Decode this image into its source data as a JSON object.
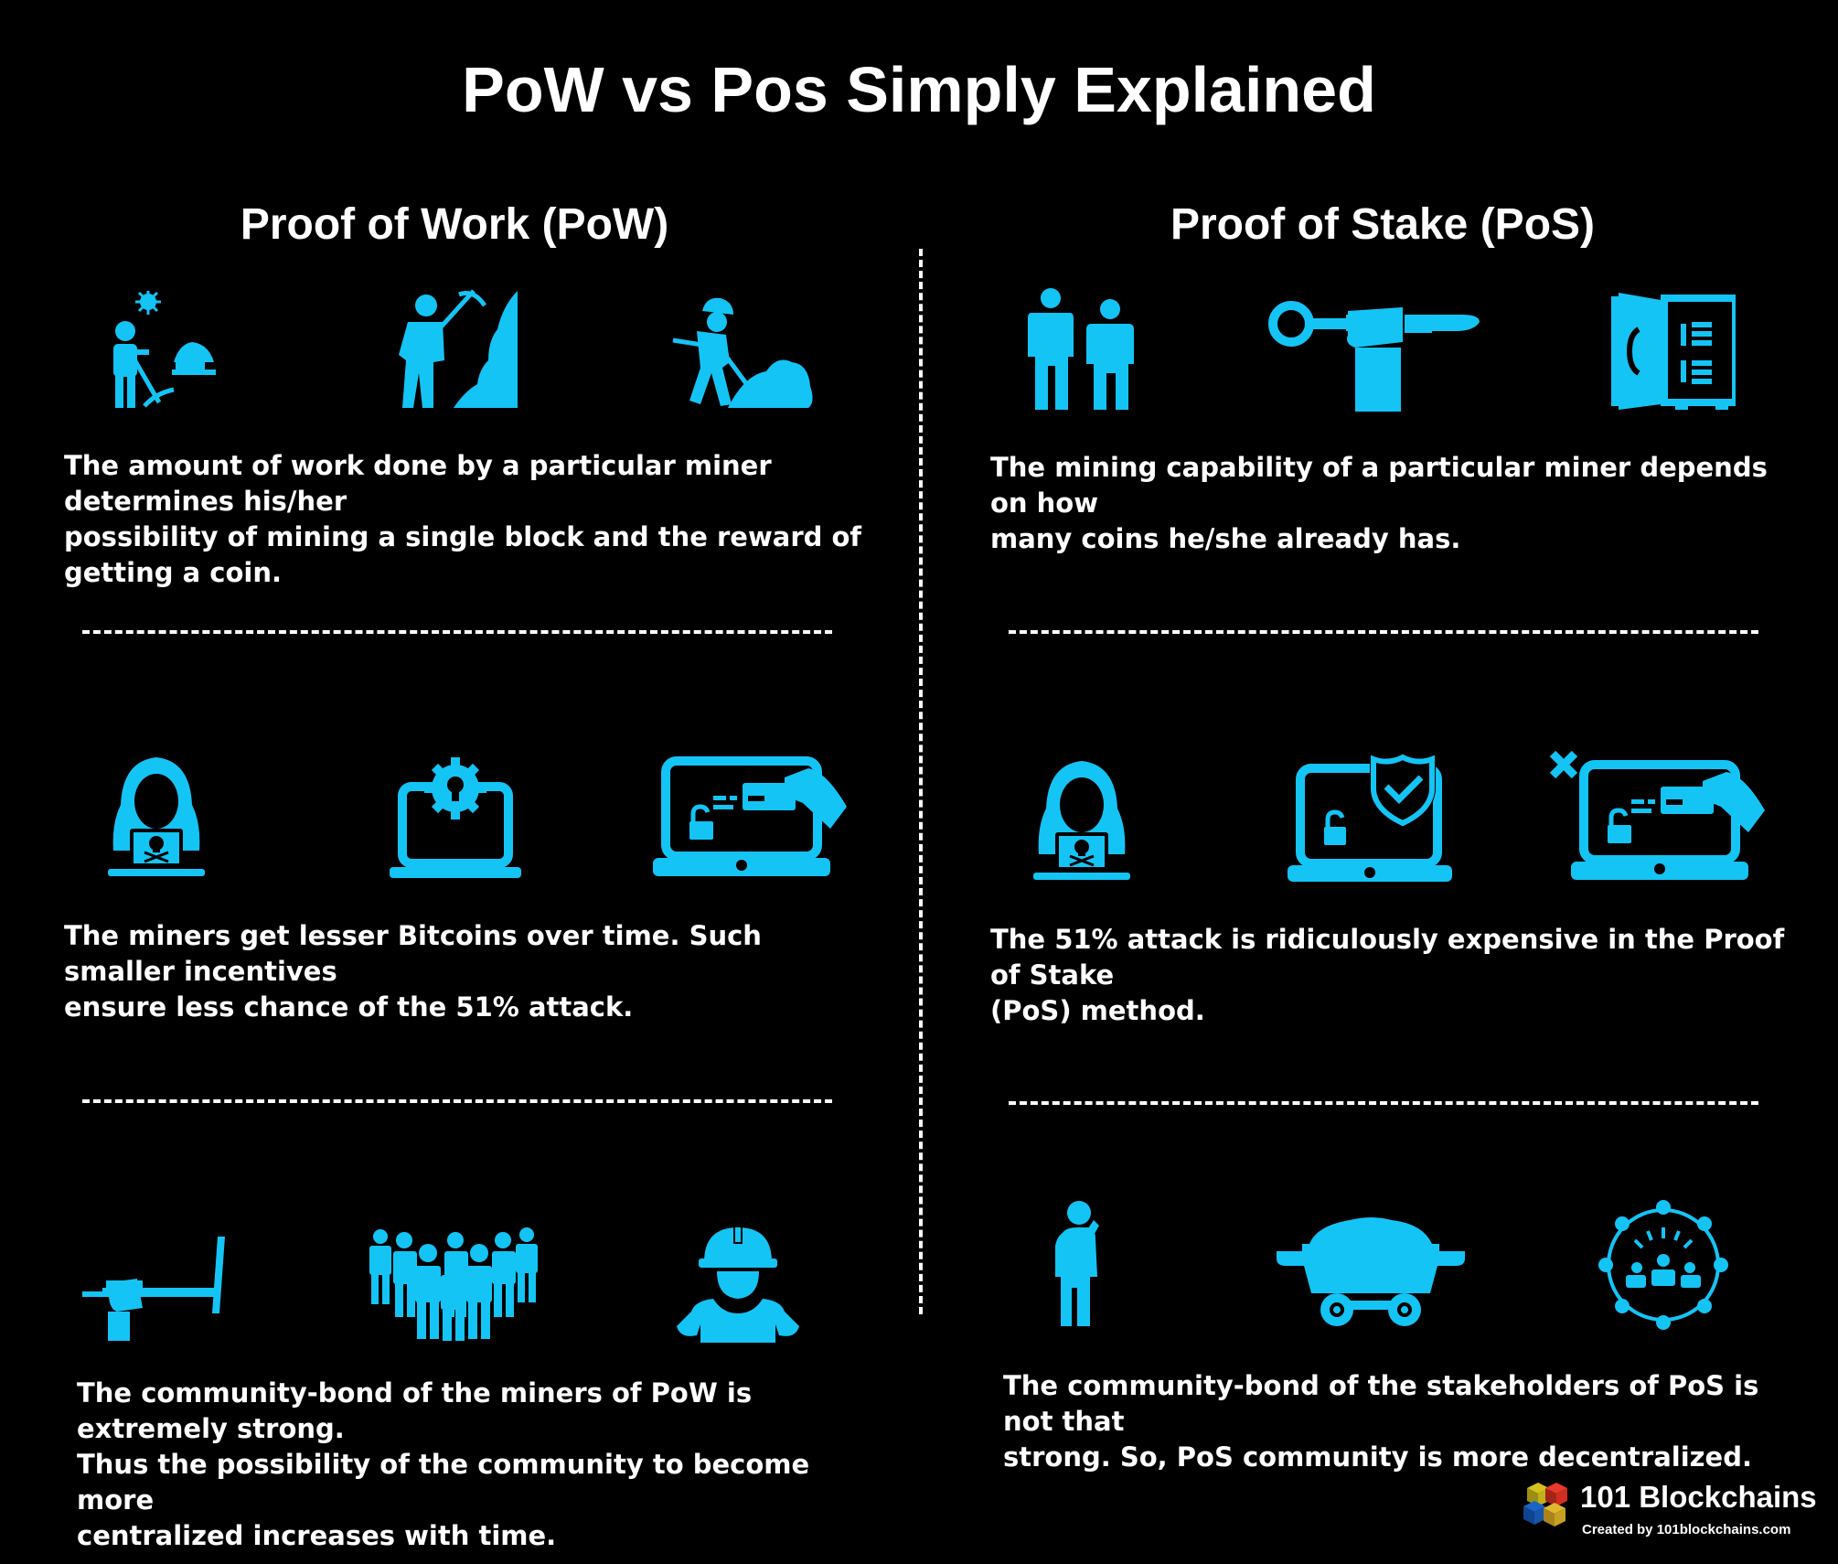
{
  "title": "PoW vs Pos Simply Explained",
  "colors": {
    "accent": "#14c4f4",
    "background": "#000000",
    "text": "#ffffff"
  },
  "pow": {
    "heading": "Proof of Work (PoW)",
    "rows": [
      {
        "icons": [
          "miner-with-pickaxe-icon",
          "miner-digging-rock-icon",
          "worker-shoveling-icon"
        ],
        "text": "The amount of work done by a particular miner determines his/her\npossibility of mining a single block and the reward of getting a coin."
      },
      {
        "icons": [
          "hacker-icon",
          "laptop-gear-lock-icon",
          "laptop-card-payment-icon"
        ],
        "text": "The miners get lesser Bitcoins over time. Such smaller incentives\nensure less chance of the 51% attack."
      },
      {
        "icons": [
          "hand-holding-pickaxe-icon",
          "crowd-icon",
          "miner-helmet-icon"
        ],
        "text": "The community-bond of the miners of PoW is extremely strong.\nThus the possibility of the community to become more\ncentralized increases with time."
      }
    ]
  },
  "pos": {
    "heading": "Proof of Stake (PoS)",
    "rows": [
      {
        "icons": [
          "two-people-icon",
          "fist-with-key-icon",
          "vault-safe-icon"
        ],
        "text": "The mining capability of a particular miner depends on how\nmany coins he/she already has."
      },
      {
        "icons": [
          "hacker-icon",
          "laptop-shield-icon",
          "laptop-card-cross-icon"
        ],
        "text": "The 51% attack is ridiculously expensive in the Proof of Stake\n(PoS) method."
      },
      {
        "icons": [
          "thinking-person-icon",
          "mine-cart-icon",
          "network-group-icon"
        ],
        "text": "The community-bond of the stakeholders of PoS is not that\nstrong. So, PoS community is more decentralized."
      }
    ]
  },
  "brand": {
    "name": "101 Blockchains",
    "tagline": "Created by 101blockchains.com"
  }
}
